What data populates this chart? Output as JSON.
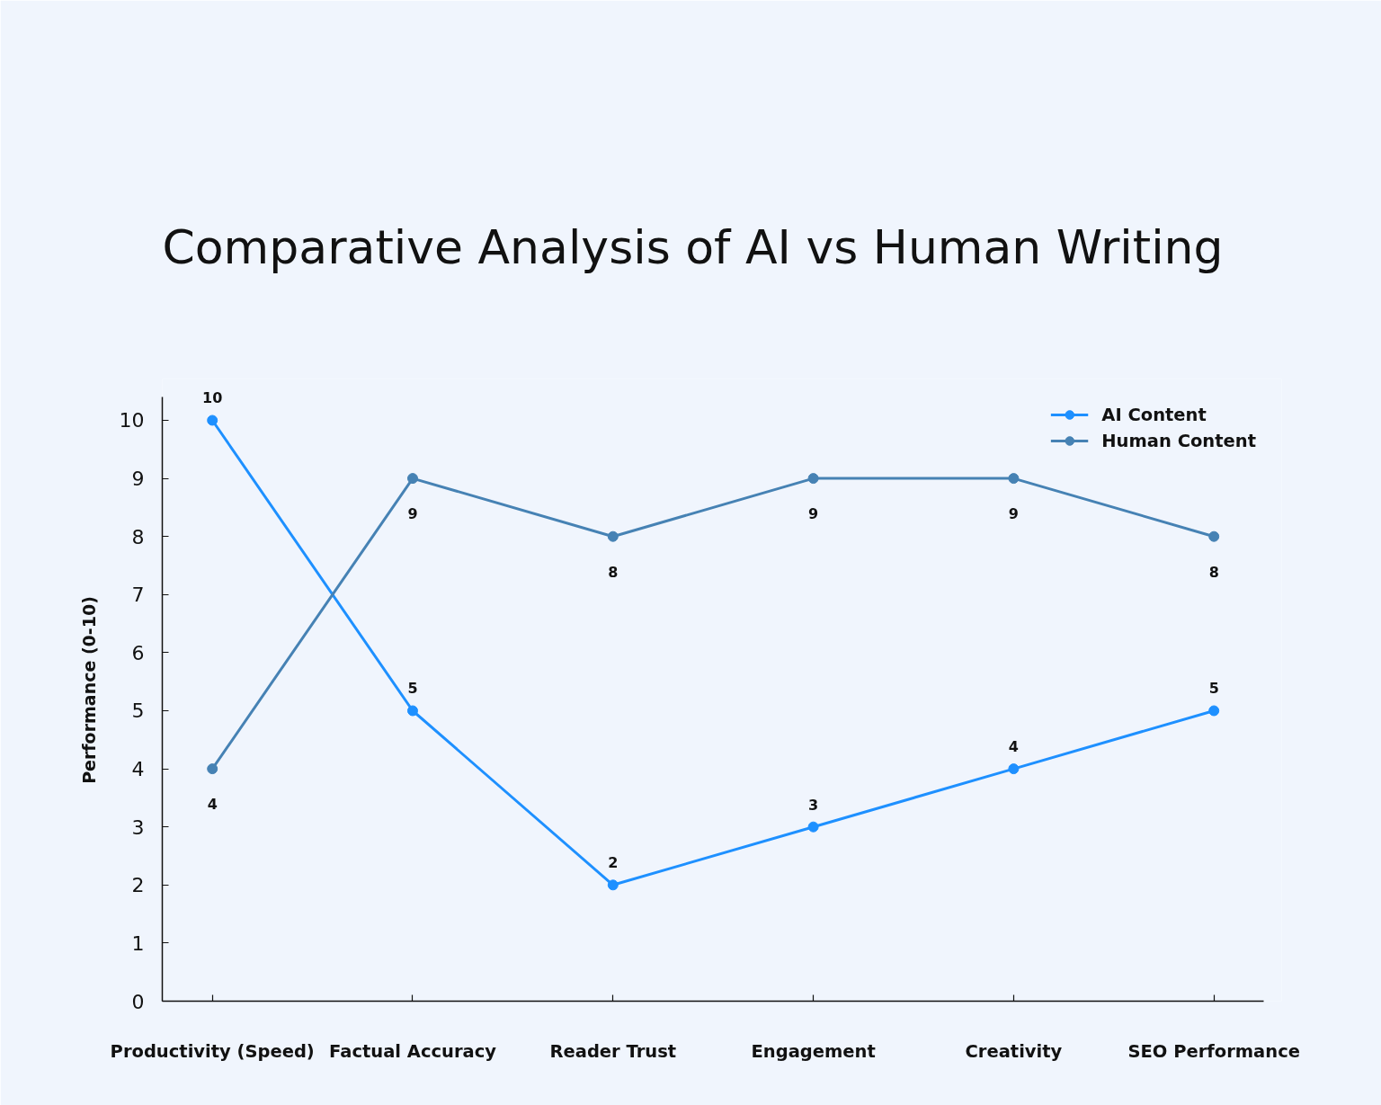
{
  "chart_data": {
    "type": "line",
    "title": "Comparative Analysis of AI vs Human Writing",
    "ylabel": "Performance (0-10)",
    "categories": [
      "Productivity (Speed)",
      "Factual Accuracy",
      "Reader Trust",
      "Engagement",
      "Creativity",
      "SEO Performance"
    ],
    "series": [
      {
        "name": "AI Content",
        "color": "#1e90ff",
        "values": [
          10,
          5,
          2,
          3,
          4,
          5
        ]
      },
      {
        "name": "Human Content",
        "color": "#4682b4",
        "values": [
          4,
          9,
          8,
          9,
          9,
          8
        ]
      }
    ],
    "ylim": [
      0,
      10.4
    ],
    "yticks": [
      0,
      1,
      2,
      3,
      4,
      5,
      6,
      7,
      8,
      9,
      10
    ],
    "data_labels": true,
    "legend": "top right",
    "marker": "circle",
    "line_style": "solid"
  }
}
